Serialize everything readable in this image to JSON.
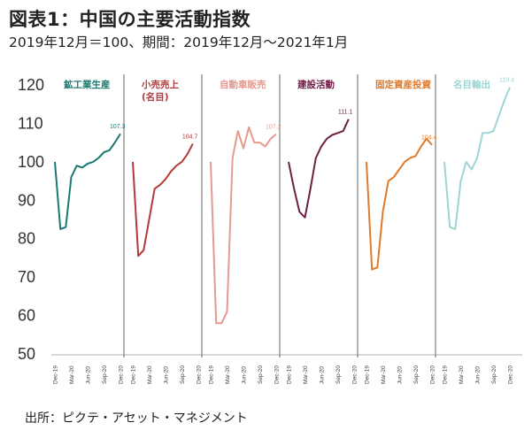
{
  "header": {
    "title": "図表1：中国の主要活動指数",
    "subtitle": "2019年12月＝100、期間：2019年12月～2021年1月"
  },
  "footer": {
    "source": "出所：ピクテ・アセット・マネジメント"
  },
  "chart_data": {
    "type": "line",
    "title": "図表1：中国の主要活動指数",
    "ylim": [
      50,
      120
    ],
    "yticks": [
      "120",
      "110",
      "100",
      "90",
      "80",
      "70",
      "60",
      "50"
    ],
    "x_tick_labels": [
      "Dec-19",
      "Mar-20",
      "Jun-20",
      "Sep-20",
      "Dec-20"
    ],
    "x_periods": [
      "2019-12",
      "2020-01",
      "2020-02",
      "2020-03",
      "2020-04",
      "2020-05",
      "2020-06",
      "2020-07",
      "2020-08",
      "2020-09",
      "2020-10",
      "2020-11",
      "2020-12",
      "2021-01"
    ],
    "grid": false,
    "panels": [
      {
        "name": "鉱工業生産",
        "color": "#1a7a72",
        "values": [
          100,
          82.5,
          83,
          96,
          99,
          98.5,
          99.5,
          100,
          101,
          102.5,
          103,
          105,
          107.3
        ],
        "end_label": "107.3"
      },
      {
        "name": "小売売上\n(名目)",
        "color": "#b23a3a",
        "values": [
          100,
          75.5,
          77,
          85,
          93,
          94,
          95.5,
          97.5,
          99,
          100,
          102,
          104.7
        ],
        "end_label": "104.7"
      },
      {
        "name": "自動車販売",
        "color": "#e59a90",
        "values": [
          100,
          58,
          58,
          61,
          101,
          108,
          103.5,
          109,
          105,
          105,
          104,
          106,
          107.2
        ],
        "end_label": "107.2"
      },
      {
        "name": "建設活動",
        "color": "#6e1e45",
        "values": [
          100,
          93,
          87,
          85.5,
          93,
          101,
          104,
          106,
          107,
          107.5,
          108,
          111.1
        ],
        "end_label": "111.1"
      },
      {
        "name": "固定資産投資",
        "color": "#e07a2a",
        "values": [
          100,
          72,
          72.5,
          87,
          95,
          96,
          98,
          100,
          101,
          101.5,
          104,
          106,
          104.4
        ],
        "end_label": "104.4"
      },
      {
        "name": "名目輸出",
        "color": "#9ed4d4",
        "values": [
          100,
          83,
          82.5,
          95,
          100,
          98,
          101,
          107.5,
          107.5,
          108,
          112,
          116,
          119.4
        ],
        "end_label": "119.4"
      }
    ]
  }
}
